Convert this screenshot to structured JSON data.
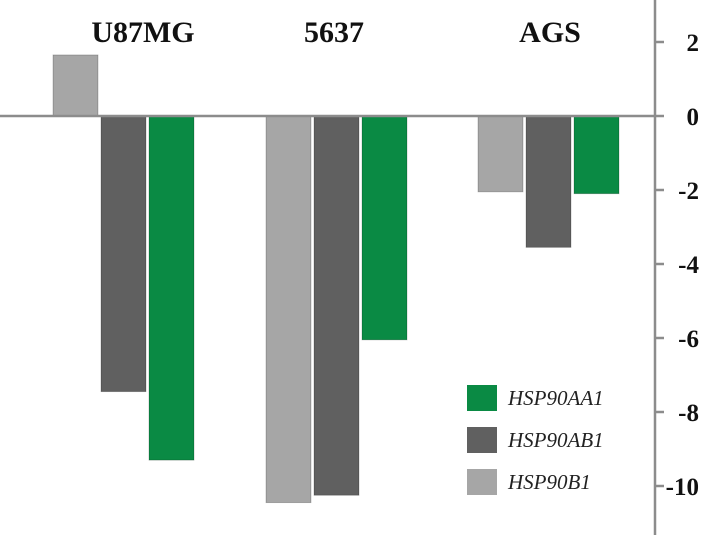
{
  "chart_data": {
    "type": "bar",
    "categories": [
      "U87MG",
      "5637",
      "AGS"
    ],
    "series": [
      {
        "name": "HSP90B1",
        "color": "#a6a6a6",
        "values": [
          1.65,
          -10.45,
          -2.05
        ]
      },
      {
        "name": "HSP90AB1",
        "color": "#606060",
        "values": [
          -7.45,
          -10.25,
          -3.55
        ]
      },
      {
        "name": "HSP90AA1",
        "color": "#0a8a44",
        "values": [
          -9.3,
          -6.05,
          -2.1
        ]
      }
    ],
    "yticks": [
      2,
      0,
      -2,
      -4,
      -6,
      -8,
      -10
    ],
    "ylim": [
      -11.5,
      3.2
    ],
    "y_axis_side": "right",
    "legend_order": [
      "HSP90AA1",
      "HSP90AB1",
      "HSP90B1"
    ],
    "legend_position": "bottom-right",
    "grid": false
  }
}
